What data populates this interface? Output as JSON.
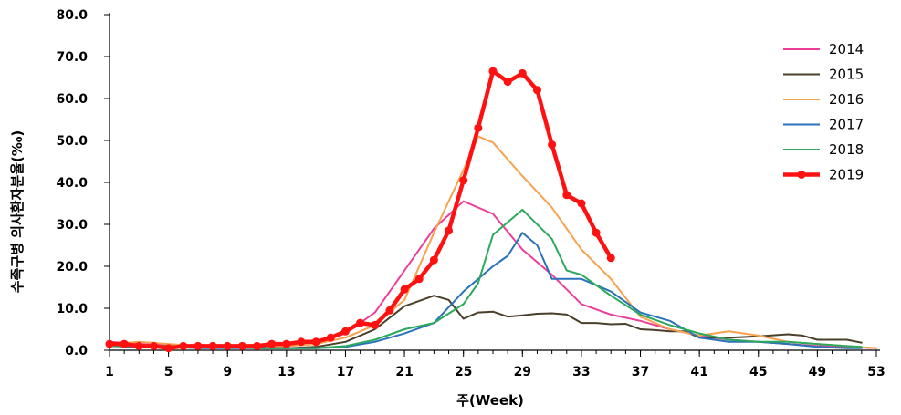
{
  "chart_data": {
    "type": "line",
    "title": "",
    "xlabel": "주(Week)",
    "ylabel": "수족구병 의사환자분율(‰)",
    "xlim": [
      1,
      53
    ],
    "ylim": [
      0,
      80
    ],
    "x_ticks": [
      "1",
      "5",
      "9",
      "13",
      "17",
      "21",
      "25",
      "29",
      "33",
      "37",
      "41",
      "45",
      "49",
      "53"
    ],
    "y_ticks": [
      "0.0",
      "10.0",
      "20.0",
      "30.0",
      "40.0",
      "50.0",
      "60.0",
      "70.0",
      "80.0"
    ],
    "grid": false,
    "legend_position": "top-right",
    "series": [
      {
        "name": "2014",
        "color": "#ec3d97",
        "x": [
          1,
          3,
          5,
          7,
          9,
          11,
          13,
          15,
          17,
          19,
          21,
          23,
          25,
          27,
          29,
          31,
          33,
          35,
          37,
          39,
          41,
          43,
          45,
          47,
          49,
          51,
          53
        ],
        "y": [
          2.0,
          1.5,
          1.2,
          1.0,
          1.0,
          0.8,
          1.0,
          1.5,
          4.0,
          9.0,
          19.0,
          29.0,
          35.5,
          32.5,
          24.0,
          18.0,
          11.0,
          8.5,
          7.0,
          5.0,
          3.5,
          2.5,
          2.0,
          1.5,
          1.0,
          0.8,
          0.5
        ]
      },
      {
        "name": "2015",
        "color": "#4a3f2a",
        "x": [
          1,
          3,
          5,
          7,
          9,
          11,
          13,
          15,
          17,
          19,
          21,
          23,
          24,
          25,
          26,
          27,
          28,
          29,
          30,
          31,
          32,
          33,
          34,
          35,
          36,
          37,
          38,
          39,
          40,
          41,
          43,
          45,
          47,
          48,
          49,
          51,
          52
        ],
        "y": [
          1.5,
          1.0,
          1.0,
          0.8,
          0.8,
          0.5,
          0.5,
          0.8,
          2.0,
          5.0,
          10.5,
          13.0,
          12.0,
          7.5,
          9.0,
          9.2,
          8.0,
          8.3,
          8.7,
          8.8,
          8.5,
          6.5,
          6.5,
          6.2,
          6.3,
          5.0,
          4.8,
          4.5,
          4.5,
          3.0,
          3.0,
          3.3,
          3.8,
          3.5,
          2.5,
          2.5,
          1.8
        ]
      },
      {
        "name": "2016",
        "color": "#f7a24e",
        "x": [
          1,
          3,
          5,
          7,
          9,
          11,
          13,
          15,
          17,
          19,
          21,
          23,
          25,
          26,
          27,
          29,
          31,
          33,
          35,
          37,
          39,
          41,
          43,
          45,
          47,
          49,
          51,
          53
        ],
        "y": [
          1.5,
          2.0,
          1.5,
          1.0,
          1.0,
          1.0,
          1.0,
          1.5,
          3.0,
          6.0,
          12.0,
          28.0,
          43.0,
          51.0,
          49.5,
          41.5,
          34.0,
          24.0,
          17.0,
          8.0,
          5.0,
          3.5,
          4.5,
          3.5,
          2.0,
          1.5,
          1.0,
          0.5
        ]
      },
      {
        "name": "2017",
        "color": "#2a72b9",
        "x": [
          1,
          3,
          5,
          7,
          9,
          11,
          13,
          15,
          17,
          19,
          21,
          23,
          25,
          27,
          28,
          29,
          30,
          31,
          33,
          35,
          37,
          39,
          41,
          43,
          45,
          47,
          49,
          51,
          52
        ],
        "y": [
          1.0,
          0.8,
          0.8,
          0.5,
          0.5,
          0.5,
          0.5,
          0.5,
          0.8,
          2.0,
          4.0,
          6.5,
          14.0,
          20.0,
          22.5,
          28.0,
          25.0,
          17.0,
          17.0,
          14.0,
          9.0,
          7.0,
          3.0,
          2.0,
          2.0,
          1.5,
          0.8,
          0.5,
          0.5
        ]
      },
      {
        "name": "2018",
        "color": "#2aa95c",
        "x": [
          1,
          3,
          5,
          7,
          9,
          11,
          13,
          15,
          17,
          19,
          21,
          23,
          25,
          26,
          27,
          29,
          31,
          32,
          33,
          35,
          37,
          39,
          41,
          43,
          45,
          47,
          49,
          51,
          52
        ],
        "y": [
          1.0,
          1.0,
          1.0,
          0.8,
          0.8,
          0.5,
          0.5,
          0.5,
          1.0,
          2.5,
          5.0,
          6.5,
          11.0,
          16.0,
          27.5,
          33.5,
          26.5,
          19.0,
          18.0,
          13.0,
          8.5,
          6.0,
          4.0,
          2.5,
          2.0,
          2.0,
          1.5,
          1.0,
          0.8
        ]
      },
      {
        "name": "2019",
        "color": "#ff1111",
        "highlight": true,
        "x": [
          1,
          2,
          3,
          4,
          5,
          6,
          7,
          8,
          9,
          10,
          11,
          12,
          13,
          14,
          15,
          16,
          17,
          18,
          19,
          20,
          21,
          22,
          23,
          24,
          25,
          26,
          27,
          28,
          29,
          30,
          31,
          32,
          33,
          34,
          35
        ],
        "y": [
          1.5,
          1.5,
          1.0,
          1.0,
          0.5,
          1.0,
          1.0,
          1.0,
          1.0,
          1.0,
          1.0,
          1.5,
          1.5,
          2.0,
          2.0,
          3.0,
          4.5,
          6.5,
          6.0,
          9.5,
          14.5,
          17.0,
          21.5,
          28.5,
          40.5,
          53.0,
          66.5,
          64.0,
          66.0,
          62.0,
          49.0,
          37.0,
          35.0,
          28.0,
          22.0
        ]
      }
    ]
  }
}
